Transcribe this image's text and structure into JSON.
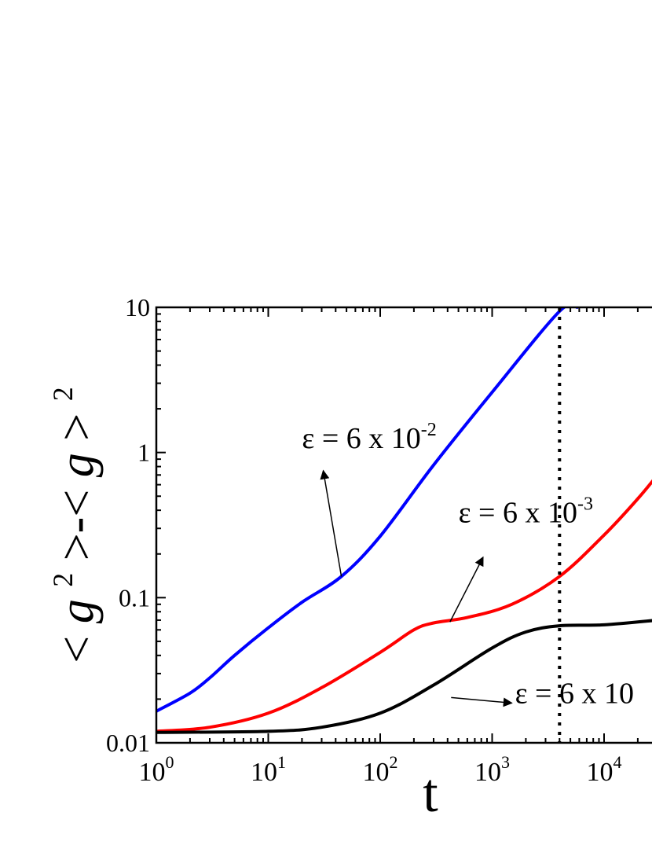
{
  "chart_data": {
    "type": "line",
    "title": "",
    "xlabel": "t",
    "ylabel": "<g2>-<g>2",
    "ylabel_parts": {
      "open1": "<",
      "g1": "g",
      "sup1": "2",
      "mid": ">-<",
      "g2": "g",
      "close": ">",
      "sup2": "2"
    },
    "x_scale": "log",
    "y_scale": "log",
    "xlim": [
      1,
      30000
    ],
    "ylim": [
      0.01,
      10
    ],
    "x_ticks": [
      {
        "value": 1,
        "base": "10",
        "exp": "0"
      },
      {
        "value": 10,
        "base": "10",
        "exp": "1"
      },
      {
        "value": 100,
        "base": "10",
        "exp": "2"
      },
      {
        "value": 1000,
        "base": "10",
        "exp": "3"
      },
      {
        "value": 10000,
        "base": "10",
        "exp": "4"
      }
    ],
    "y_ticks": [
      {
        "value": 0.01,
        "label": "0.01"
      },
      {
        "value": 0.1,
        "label": "0.1"
      },
      {
        "value": 1,
        "label": "1"
      },
      {
        "value": 10,
        "label": "10"
      }
    ],
    "vertical_line": {
      "x": 4000,
      "style": "dotted"
    },
    "series": [
      {
        "color": "#0000ff",
        "points": [
          [
            1,
            0.0165
          ],
          [
            2,
            0.022
          ],
          [
            3,
            0.028
          ],
          [
            5,
            0.04
          ],
          [
            10,
            0.062
          ],
          [
            20,
            0.093
          ],
          [
            45,
            0.14
          ],
          [
            100,
            0.265
          ],
          [
            300,
            0.82
          ],
          [
            1000,
            2.6
          ],
          [
            4000,
            9.4
          ],
          [
            5800,
            10
          ]
        ]
      },
      {
        "color": "#ff0000",
        "points": [
          [
            1,
            0.012
          ],
          [
            3,
            0.0128
          ],
          [
            10,
            0.016
          ],
          [
            30,
            0.024
          ],
          [
            100,
            0.042
          ],
          [
            200,
            0.06
          ],
          [
            300,
            0.067
          ],
          [
            600,
            0.073
          ],
          [
            1500,
            0.09
          ],
          [
            4000,
            0.14
          ],
          [
            10000,
            0.27
          ],
          [
            20000,
            0.48
          ],
          [
            30000,
            0.7
          ]
        ]
      },
      {
        "color": "#000000",
        "points": [
          [
            1,
            0.0118
          ],
          [
            10,
            0.012
          ],
          [
            30,
            0.0128
          ],
          [
            100,
            0.016
          ],
          [
            300,
            0.025
          ],
          [
            1000,
            0.045
          ],
          [
            2000,
            0.058
          ],
          [
            4000,
            0.064
          ],
          [
            10000,
            0.065
          ],
          [
            30000,
            0.07
          ]
        ]
      }
    ],
    "annotations": [
      {
        "base": "ε = 6 x 10",
        "exp": "-2",
        "at": [
          20,
          1.07
        ],
        "arrow_from": [
          45,
          0.14
        ],
        "arrow_to": [
          31,
          0.75
        ]
      },
      {
        "base": "ε = 6 x 10",
        "exp": "-3",
        "at": [
          500,
          0.33
        ],
        "arrow_from": [
          420,
          0.068
        ],
        "arrow_to": [
          830,
          0.19
        ]
      },
      {
        "base": "ε = 6 x 10",
        "exp": "",
        "at": [
          1600,
          0.0188
        ],
        "arrow_from": [
          430,
          0.0205
        ],
        "arrow_to": [
          1500,
          0.0188
        ]
      }
    ]
  }
}
